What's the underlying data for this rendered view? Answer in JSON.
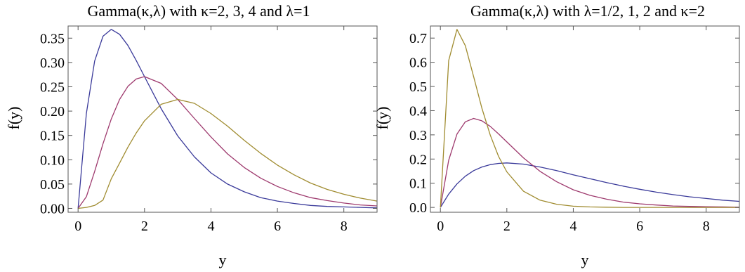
{
  "chart_data": [
    {
      "type": "line",
      "title": "Gamma(κ,λ) with κ=2, 3, 4 and λ=1",
      "xlabel": "y",
      "ylabel": "f(y)",
      "xlim": [
        -0.3,
        9.0
      ],
      "ylim": [
        -0.008,
        0.375
      ],
      "xticks": [
        0,
        2,
        4,
        6,
        8
      ],
      "xtick_labels": [
        "0",
        "2",
        "4",
        "6",
        "8"
      ],
      "yticks": [
        0.0,
        0.05,
        0.1,
        0.15,
        0.2,
        0.25,
        0.3,
        0.35
      ],
      "ytick_labels": [
        "0.00",
        "0.05",
        "0.10",
        "0.15",
        "0.20",
        "0.25",
        "0.30",
        "0.35"
      ],
      "grid": false,
      "legend": "none",
      "x": [
        0,
        0.25,
        0.5,
        0.75,
        1,
        1.25,
        1.5,
        1.75,
        2,
        2.5,
        3,
        3.5,
        4,
        4.5,
        5,
        5.5,
        6,
        6.5,
        7,
        7.5,
        8,
        8.5,
        9
      ],
      "series": [
        {
          "color": "#3a3a9a",
          "values": [
            0,
            0.195,
            0.303,
            0.354,
            0.368,
            0.358,
            0.335,
            0.304,
            0.271,
            0.205,
            0.149,
            0.106,
            0.073,
            0.05,
            0.034,
            0.022,
            0.015,
            0.01,
            0.006,
            0.004,
            0.003,
            0.002,
            0.001
          ]
        },
        {
          "color": "#9e3a6e",
          "values": [
            0,
            0.024,
            0.076,
            0.133,
            0.184,
            0.224,
            0.251,
            0.266,
            0.271,
            0.257,
            0.224,
            0.185,
            0.147,
            0.112,
            0.084,
            0.062,
            0.045,
            0.032,
            0.022,
            0.016,
            0.011,
            0.007,
            0.005
          ]
        },
        {
          "color": "#a08c30",
          "values": [
            0,
            0.002,
            0.006,
            0.017,
            0.061,
            0.093,
            0.126,
            0.155,
            0.18,
            0.214,
            0.224,
            0.216,
            0.195,
            0.169,
            0.14,
            0.113,
            0.089,
            0.069,
            0.052,
            0.039,
            0.029,
            0.021,
            0.015
          ]
        }
      ]
    },
    {
      "type": "line",
      "title": "Gamma(κ,λ) with λ=1/2, 1, 2 and κ=2",
      "xlabel": "y",
      "ylabel": "f(y)",
      "xlim": [
        -0.3,
        9.0
      ],
      "ylim": [
        -0.02,
        0.75
      ],
      "xticks": [
        0,
        2,
        4,
        6,
        8
      ],
      "xtick_labels": [
        "0",
        "2",
        "4",
        "6",
        "8"
      ],
      "yticks": [
        0.0,
        0.1,
        0.2,
        0.3,
        0.4,
        0.5,
        0.6,
        0.7
      ],
      "ytick_labels": [
        "0.0",
        "0.1",
        "0.2",
        "0.3",
        "0.4",
        "0.5",
        "0.6",
        "0.7"
      ],
      "grid": false,
      "legend": "none",
      "x": [
        0,
        0.25,
        0.5,
        0.75,
        1,
        1.25,
        1.5,
        1.75,
        2,
        2.5,
        3,
        3.5,
        4,
        4.5,
        5,
        5.5,
        6,
        6.5,
        7,
        7.5,
        8,
        8.5,
        9
      ],
      "series": [
        {
          "color": "#3a3a9a",
          "values": [
            0,
            0.055,
            0.097,
            0.129,
            0.152,
            0.167,
            0.177,
            0.182,
            0.184,
            0.179,
            0.167,
            0.152,
            0.135,
            0.119,
            0.103,
            0.088,
            0.075,
            0.063,
            0.053,
            0.044,
            0.037,
            0.03,
            0.025
          ]
        },
        {
          "color": "#9e3a6e",
          "values": [
            0,
            0.195,
            0.303,
            0.354,
            0.368,
            0.358,
            0.335,
            0.304,
            0.271,
            0.205,
            0.149,
            0.106,
            0.073,
            0.05,
            0.034,
            0.022,
            0.015,
            0.01,
            0.006,
            0.004,
            0.003,
            0.002,
            0.001
          ]
        },
        {
          "color": "#a08c30",
          "values": [
            0,
            0.607,
            0.736,
            0.669,
            0.541,
            0.41,
            0.299,
            0.211,
            0.147,
            0.067,
            0.03,
            0.013,
            0.005,
            0.002,
            0.001,
            0.0,
            0.0,
            0.0,
            0.0,
            0.0,
            0.0,
            0.0,
            0.0
          ]
        }
      ]
    }
  ]
}
